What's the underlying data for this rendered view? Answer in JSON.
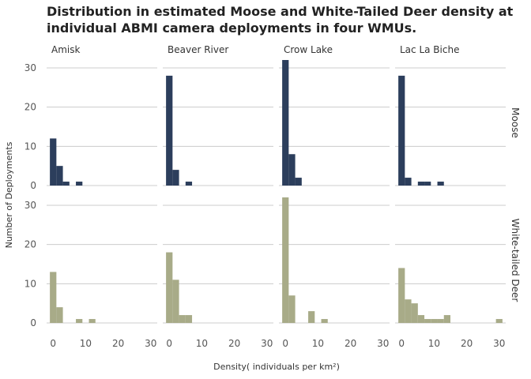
{
  "chart_data": {
    "type": "bar",
    "title_lines": [
      "Distribution in estimated Moose and White-Tailed Deer density at",
      "individual ABMI camera deployments in four WMUs."
    ],
    "xlabel": "Density( individuals per km²)",
    "ylabel": "Number of Deployments",
    "columns": [
      "Amisk",
      "Beaver River",
      "Crow Lake",
      "Lac La Biche"
    ],
    "rows": [
      {
        "name": "Moose",
        "color": "#2c3e5c"
      },
      {
        "name": "White-tailed Deer",
        "color": "#a8ab88"
      }
    ],
    "xlim": [
      -2,
      32
    ],
    "ylim": [
      0,
      32
    ],
    "x_ticks": [
      0,
      10,
      20,
      30
    ],
    "y_ticks": [
      0,
      10,
      20,
      30
    ],
    "bin_width": 2,
    "bin_starts": [
      -1,
      1,
      3,
      5,
      7,
      9,
      11,
      13,
      15,
      17,
      19,
      21,
      23,
      25,
      27,
      29
    ],
    "grid": true,
    "panels": [
      {
        "row": "Moose",
        "column": "Amisk",
        "counts": [
          12,
          5,
          1,
          0,
          1,
          0,
          0,
          0,
          0,
          0,
          0,
          0,
          0,
          0,
          0,
          0
        ]
      },
      {
        "row": "Moose",
        "column": "Beaver River",
        "counts": [
          28,
          4,
          0,
          1,
          0,
          0,
          0,
          0,
          0,
          0,
          0,
          0,
          0,
          0,
          0,
          0
        ]
      },
      {
        "row": "Moose",
        "column": "Crow Lake",
        "counts": [
          32,
          8,
          2,
          0,
          0,
          0,
          0,
          0,
          0,
          0,
          0,
          0,
          0,
          0,
          0,
          0
        ]
      },
      {
        "row": "Moose",
        "column": "Lac La Biche",
        "counts": [
          28,
          2,
          0,
          1,
          1,
          0,
          1,
          0,
          0,
          0,
          0,
          0,
          0,
          0,
          0,
          0
        ]
      },
      {
        "row": "White-tailed Deer",
        "column": "Amisk",
        "counts": [
          13,
          4,
          0,
          0,
          1,
          0,
          1,
          0,
          0,
          0,
          0,
          0,
          0,
          0,
          0,
          0
        ]
      },
      {
        "row": "White-tailed Deer",
        "column": "Beaver River",
        "counts": [
          18,
          11,
          2,
          2,
          0,
          0,
          0,
          0,
          0,
          0,
          0,
          0,
          0,
          0,
          0,
          0
        ]
      },
      {
        "row": "White-tailed Deer",
        "column": "Crow Lake",
        "counts": [
          32,
          7,
          0,
          0,
          3,
          0,
          1,
          0,
          0,
          0,
          0,
          0,
          0,
          0,
          0,
          0
        ]
      },
      {
        "row": "White-tailed Deer",
        "column": "Lac La Biche",
        "counts": [
          14,
          6,
          5,
          2,
          1,
          1,
          1,
          2,
          0,
          0,
          0,
          0,
          0,
          0,
          0,
          1
        ]
      }
    ]
  }
}
